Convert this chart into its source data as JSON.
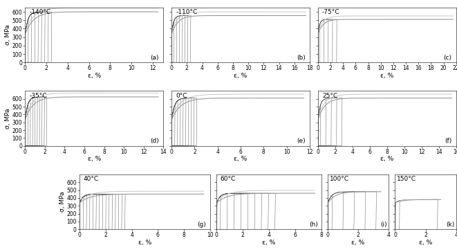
{
  "row1": {
    "panels": [
      {
        "label": "(a)",
        "temp": "-140°C",
        "xmax": 13,
        "xtick_step": 2,
        "sigma_max": 600,
        "sigma_plateau": 530,
        "n_cycles": 8,
        "max_cycle_eps": 2.5,
        "mono_end": 12.5,
        "mono_drop": true,
        "ylim": [
          0,
          650
        ]
      },
      {
        "label": "(b)",
        "temp": "-110°C",
        "xmax": 18,
        "xtick_step": 2,
        "sigma_max": 555,
        "sigma_plateau": 490,
        "n_cycles": 7,
        "max_cycle_eps": 2.5,
        "mono_end": 17.5,
        "mono_drop": false,
        "ylim": [
          0,
          650
        ]
      },
      {
        "label": "(c)",
        "temp": "-75°C",
        "xmax": 22,
        "xtick_step": 2,
        "sigma_max": 510,
        "sigma_plateau": 430,
        "n_cycles": 5,
        "max_cycle_eps": 3.0,
        "mono_end": 21.5,
        "mono_drop": false,
        "ylim": [
          0,
          650
        ]
      }
    ],
    "yticks": [
      0,
      100,
      200,
      300,
      400,
      500,
      600
    ]
  },
  "row2": {
    "panels": [
      {
        "label": "(d)",
        "temp": "-35°C",
        "xmax": 14,
        "xtick_step": 2,
        "sigma_max": 625,
        "sigma_plateau": 570,
        "n_cycles": 9,
        "max_cycle_eps": 2.2,
        "mono_end": 13.5,
        "mono_drop": false,
        "ylim": [
          0,
          700
        ]
      },
      {
        "label": "(e)",
        "temp": "0°C",
        "xmax": 12,
        "xtick_step": 2,
        "sigma_max": 610,
        "sigma_plateau": 555,
        "n_cycles": 9,
        "max_cycle_eps": 2.2,
        "mono_end": 11.5,
        "mono_drop": false,
        "ylim": [
          0,
          700
        ]
      },
      {
        "label": "(f)",
        "temp": "25°C",
        "xmax": 16,
        "xtick_step": 2,
        "sigma_max": 610,
        "sigma_plateau": 560,
        "n_cycles": 5,
        "max_cycle_eps": 2.8,
        "mono_end": 15.5,
        "mono_drop": false,
        "ylim": [
          0,
          700
        ]
      }
    ],
    "yticks": [
      0,
      100,
      200,
      300,
      400,
      500,
      600
    ]
  },
  "row3": {
    "panels": [
      {
        "label": "(g)",
        "temp": "40°C",
        "xmax": 10,
        "xtick_step": 2,
        "sigma_max": 450,
        "sigma_plateau": 440,
        "n_cycles": 14,
        "max_cycle_eps": 3.5,
        "mono_end": 9.5,
        "mono_drop": false,
        "ylim": [
          0,
          700
        ]
      },
      {
        "label": "(h)",
        "temp": "60°C",
        "xmax": 8,
        "xtick_step": 2,
        "sigma_max": 460,
        "sigma_plateau": 448,
        "n_cycles": 9,
        "max_cycle_eps": 4.5,
        "mono_end": 7.5,
        "mono_drop": false,
        "ylim": [
          0,
          700
        ]
      },
      {
        "label": "(i)",
        "temp": "100°C",
        "xmax": 4,
        "xtick_step": 2,
        "sigma_max": 480,
        "sigma_plateau": 0,
        "n_cycles": 5,
        "max_cycle_eps": 3.2,
        "mono_end": 3.5,
        "mono_drop": true,
        "ylim": [
          0,
          700
        ]
      },
      {
        "label": "(k)",
        "temp": "150°C",
        "xmax": 4,
        "xtick_step": 2,
        "sigma_max": 380,
        "sigma_plateau": 0,
        "n_cycles": 2,
        "max_cycle_eps": 2.8,
        "mono_end": 3.0,
        "mono_drop": true,
        "ylim": [
          0,
          700
        ]
      }
    ],
    "yticks": [
      0,
      100,
      200,
      300,
      400,
      500,
      600
    ]
  },
  "ylabel": "σ, MPa",
  "xlabel": "ε, %",
  "bg_color": "#ffffff",
  "font_size": 6.5
}
